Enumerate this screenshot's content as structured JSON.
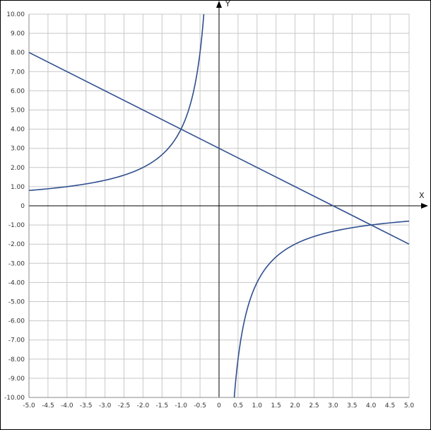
{
  "chart_data": {
    "type": "line",
    "xlabel": "X",
    "ylabel": "Y",
    "xlim": [
      -5,
      5
    ],
    "ylim": [
      -10,
      10
    ],
    "grid": true,
    "x_ticks": [
      "-5.0",
      "-4.5",
      "-4.0",
      "-3.5",
      "-3.0",
      "-2.5",
      "-2.0",
      "-1.5",
      "-1.0",
      "-0.5",
      "0",
      "0.5",
      "1.0",
      "1.5",
      "2.0",
      "2.5",
      "3.0",
      "3.5",
      "4.0",
      "4.5",
      "5.0"
    ],
    "y_ticks": [
      "10.00",
      "9.00",
      "8.00",
      "7.00",
      "6.00",
      "5.00",
      "4.00",
      "3.00",
      "2.00",
      "1.00",
      "0",
      "-1.00",
      "-2.00",
      "-3.00",
      "-4.00",
      "-5.00",
      "-6.00",
      "-7.00",
      "-8.00",
      "-9.00",
      "-10.00"
    ],
    "series": [
      {
        "kind": "line",
        "color": "#2f4f8f",
        "x": [
          -5,
          5
        ],
        "y": [
          8,
          -2
        ]
      },
      {
        "kind": "hyperbola-left",
        "color": "#2f4f8f",
        "x": [
          -5,
          -4.5,
          -4,
          -3.5,
          -3,
          -2.5,
          -2,
          -1.5,
          -1.25,
          -1,
          -0.8,
          -0.6,
          -0.5,
          -0.45,
          -0.4
        ],
        "y": [
          0.8,
          0.89,
          1.0,
          1.14,
          1.33,
          1.6,
          2.0,
          2.67,
          3.2,
          4.0,
          5.0,
          6.67,
          8.0,
          8.89,
          10.0
        ]
      },
      {
        "kind": "hyperbola-right",
        "color": "#2f4f8f",
        "x": [
          0.4,
          0.45,
          0.5,
          0.6,
          0.8,
          1,
          1.25,
          1.5,
          2,
          2.5,
          3,
          3.5,
          4,
          4.5,
          5
        ],
        "y": [
          -10.0,
          -8.89,
          -8.0,
          -6.67,
          -5.0,
          -4.0,
          -3.2,
          -2.67,
          -2.0,
          -1.6,
          -1.33,
          -1.14,
          -1.0,
          -0.89,
          -0.8
        ]
      }
    ]
  }
}
